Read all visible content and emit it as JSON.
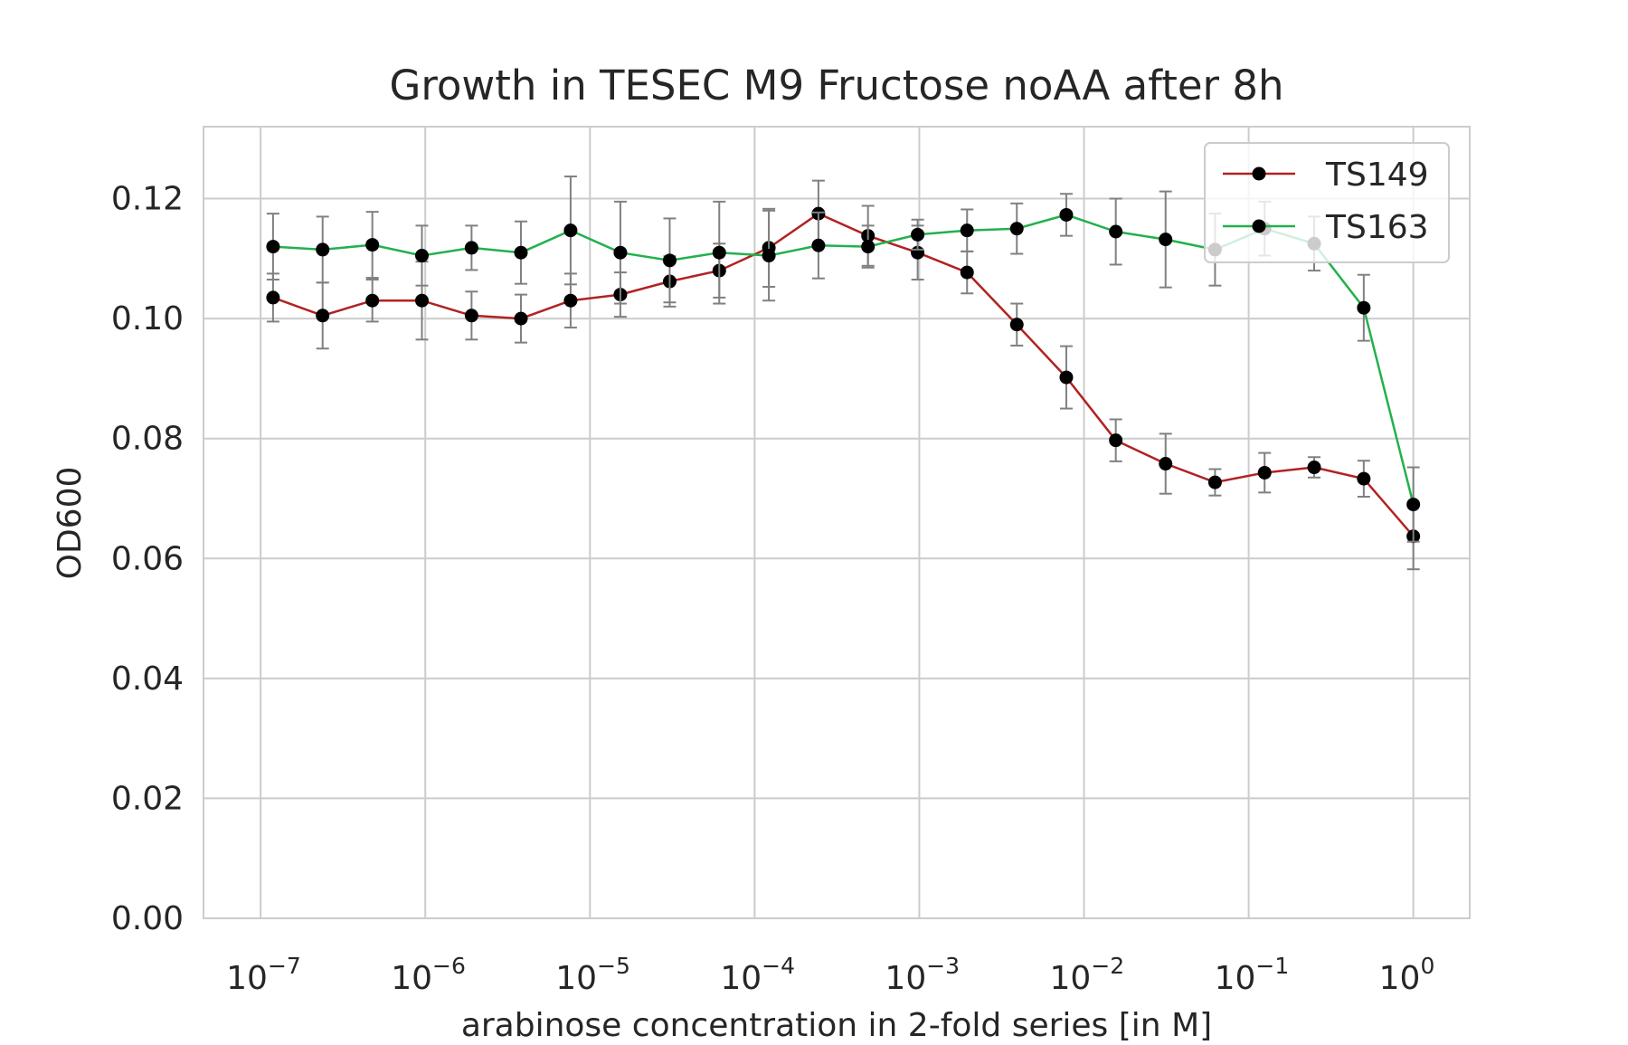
{
  "chart_data": {
    "type": "line",
    "title": "Growth in TESEC M9 Fructose noAA after 8h",
    "xlabel": "arabinose concentration in 2-fold series [in M]",
    "ylabel": "OD600",
    "xscale": "log",
    "xlim": [
      4.5e-08,
      2.2
    ],
    "ylim": [
      0,
      0.132
    ],
    "grid": true,
    "legend_position": "top-right",
    "x_ticks": [
      {
        "base": "10",
        "exp": "−7"
      },
      {
        "base": "10",
        "exp": "−6"
      },
      {
        "base": "10",
        "exp": "−5"
      },
      {
        "base": "10",
        "exp": "−4"
      },
      {
        "base": "10",
        "exp": "−3"
      },
      {
        "base": "10",
        "exp": "−2"
      },
      {
        "base": "10",
        "exp": "−1"
      },
      {
        "base": "10",
        "exp": "0"
      }
    ],
    "y_ticks": [
      "0.00",
      "0.02",
      "0.04",
      "0.06",
      "0.08",
      "0.10",
      "0.12"
    ],
    "x": [
      1.19e-07,
      2.38e-07,
      4.77e-07,
      9.54e-07,
      1.91e-06,
      3.81e-06,
      7.63e-06,
      1.53e-05,
      3.05e-05,
      6.1e-05,
      0.000122,
      0.000244,
      0.000488,
      0.000977,
      0.00195,
      0.00391,
      0.00781,
      0.0156,
      0.0313,
      0.0625,
      0.125,
      0.25,
      0.5,
      1.0
    ],
    "series": [
      {
        "name": "TS149",
        "color": "#b22222",
        "marker_color": "#000000",
        "values": [
          0.1035,
          0.1005,
          0.103,
          0.103,
          0.1005,
          0.1,
          0.103,
          0.104,
          0.1062,
          0.108,
          0.1118,
          0.1175,
          0.1138,
          0.111,
          0.1077,
          0.099,
          0.0902,
          0.0797,
          0.0758,
          0.0727,
          0.0743,
          0.0752,
          0.0733,
          0.0637
        ],
        "errors": [
          0.004,
          0.0055,
          0.0035,
          0.0065,
          0.004,
          0.004,
          0.0045,
          0.0037,
          0.0042,
          0.0045,
          0.0065,
          0.0055,
          0.005,
          0.0045,
          0.0035,
          0.0035,
          0.0052,
          0.0035,
          0.005,
          0.0022,
          0.0033,
          0.0017,
          0.003,
          0.0055
        ]
      },
      {
        "name": "TS163",
        "color": "#22b14c",
        "marker_color": "#000000",
        "values": [
          0.112,
          0.1115,
          0.1123,
          0.1105,
          0.1118,
          0.111,
          0.1147,
          0.111,
          0.1097,
          0.111,
          0.1105,
          0.1122,
          0.112,
          0.114,
          0.1147,
          0.115,
          0.1173,
          0.1145,
          0.1132,
          0.1115,
          0.115,
          0.1125,
          0.1018,
          0.069
        ],
        "errors": [
          0.0055,
          0.0055,
          0.0055,
          0.005,
          0.0037,
          0.0052,
          0.009,
          0.0085,
          0.007,
          0.0085,
          0.0075,
          0.0055,
          0.0035,
          0.0025,
          0.0035,
          0.0042,
          0.0035,
          0.0055,
          0.008,
          0.006,
          0.0045,
          0.0045,
          0.0055,
          0.0062
        ]
      }
    ]
  }
}
